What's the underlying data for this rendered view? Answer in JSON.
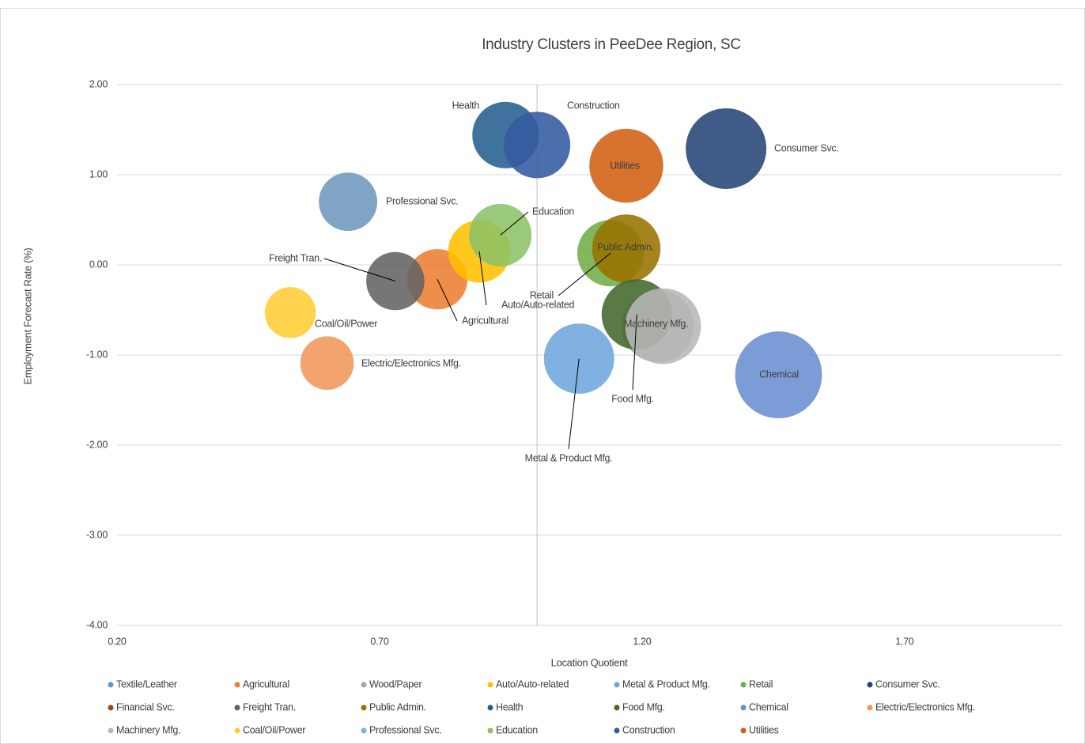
{
  "chart_data": {
    "type": "bubble",
    "title": "Industry Clusters in PeeDee Region, SC",
    "x_label": "Location Quotient",
    "y_label": "Employment Forecast Rate (%)",
    "xlim": [
      0.2,
      2.0
    ],
    "ylim": [
      -4,
      2
    ],
    "xticks": [
      {
        "value": 0.2,
        "label": "0.20"
      },
      {
        "value": 0.7,
        "label": "0.70"
      },
      {
        "value": 1.2,
        "label": "1.20"
      },
      {
        "value": 1.7,
        "label": "1.70"
      }
    ],
    "yticks": [
      {
        "value": 2,
        "label": "2.00"
      },
      {
        "value": 1,
        "label": "1.00"
      },
      {
        "value": 0,
        "label": "0.00"
      },
      {
        "value": -1,
        "label": "-1.00"
      },
      {
        "value": -2,
        "label": "-2.00"
      },
      {
        "value": -3,
        "label": "-3.00"
      },
      {
        "value": -4,
        "label": "-4.00"
      }
    ],
    "y_axis_crosses_at": 1.0,
    "grid": true,
    "legend": "bottom",
    "series": [
      {
        "name": "Textile/Leather",
        "color": "#5b9bd5",
        "x": [
          0.64
        ],
        "values": [
          0.7
        ],
        "sizes": [
          13
        ]
      },
      {
        "name": "Agricultural",
        "color": "#ed7d31",
        "x": [
          0.81
        ],
        "values": [
          -0.16
        ],
        "sizes": [
          14
        ]
      },
      {
        "name": "Wood/Paper",
        "color": "#a5a5a5",
        "x": [
          1.23
        ],
        "values": [
          -0.68
        ],
        "sizes": [
          20
        ]
      },
      {
        "name": "Auto/Auto-related",
        "color": "#ffc000",
        "x": [
          0.89
        ],
        "values": [
          0.15
        ],
        "sizes": [
          15
        ]
      },
      {
        "name": "Metal & Product Mfg.",
        "color": "#6fa6dc",
        "x": [
          1.08
        ],
        "values": [
          -1.04
        ],
        "sizes": [
          19
        ]
      },
      {
        "name": "Retail",
        "color": "#70ad47",
        "x": [
          1.14
        ],
        "values": [
          0.13
        ],
        "sizes": [
          17
        ]
      },
      {
        "name": "Consumer Svc.",
        "color": "#264478",
        "x": [
          1.36
        ],
        "values": [
          1.29
        ],
        "sizes": [
          25
        ]
      },
      {
        "name": "Financial Svc.",
        "color": "#9e480e",
        "x": [
          0.64
        ],
        "values": [
          0.7
        ],
        "sizes": [
          13
        ]
      },
      {
        "name": "Freight Tran.",
        "color": "#636363",
        "x": [
          0.73
        ],
        "values": [
          -0.18
        ],
        "sizes": [
          13
        ]
      },
      {
        "name": "Public Admin.",
        "color": "#997300",
        "x": [
          1.17
        ],
        "values": [
          0.18
        ],
        "sizes": [
          18
        ]
      },
      {
        "name": "Health",
        "color": "#255e91",
        "x": [
          0.94
        ],
        "values": [
          1.44
        ],
        "sizes": [
          17
        ]
      },
      {
        "name": "Food Mfg.",
        "color": "#43682b",
        "x": [
          1.19
        ],
        "values": [
          -0.55
        ],
        "sizes": [
          19
        ]
      },
      {
        "name": "Chemical",
        "color": "#698ed0",
        "x": [
          1.46
        ],
        "values": [
          -1.22
        ],
        "sizes": [
          29
        ]
      },
      {
        "name": "Electric/Electronics Mfg.",
        "color": "#f1975a",
        "x": [
          0.6
        ],
        "values": [
          -1.09
        ],
        "sizes": [
          11
        ]
      },
      {
        "name": "Machinery Mfg.",
        "color": "#b7b7b7",
        "x": [
          1.24
        ],
        "values": [
          -0.68
        ],
        "sizes": [
          22
        ]
      },
      {
        "name": "Coal/Oil/Power",
        "color": "#ffcd33",
        "x": [
          0.53
        ],
        "values": [
          -0.53
        ],
        "sizes": [
          10
        ]
      },
      {
        "name": "Professional Svc.",
        "color": "#7cafdd",
        "x": [
          0.64
        ],
        "values": [
          0.7
        ],
        "sizes": [
          13
        ]
      },
      {
        "name": "Education",
        "color": "#8cc168",
        "x": [
          0.93
        ],
        "values": [
          0.33
        ],
        "sizes": [
          15
        ]
      },
      {
        "name": "Construction",
        "color": "#335aa1",
        "x": [
          1.0
        ],
        "values": [
          1.33
        ],
        "sizes": [
          17
        ]
      },
      {
        "name": "Utilities",
        "color": "#d26012",
        "x": [
          1.17
        ],
        "values": [
          1.1
        ],
        "sizes": [
          21
        ]
      }
    ]
  }
}
